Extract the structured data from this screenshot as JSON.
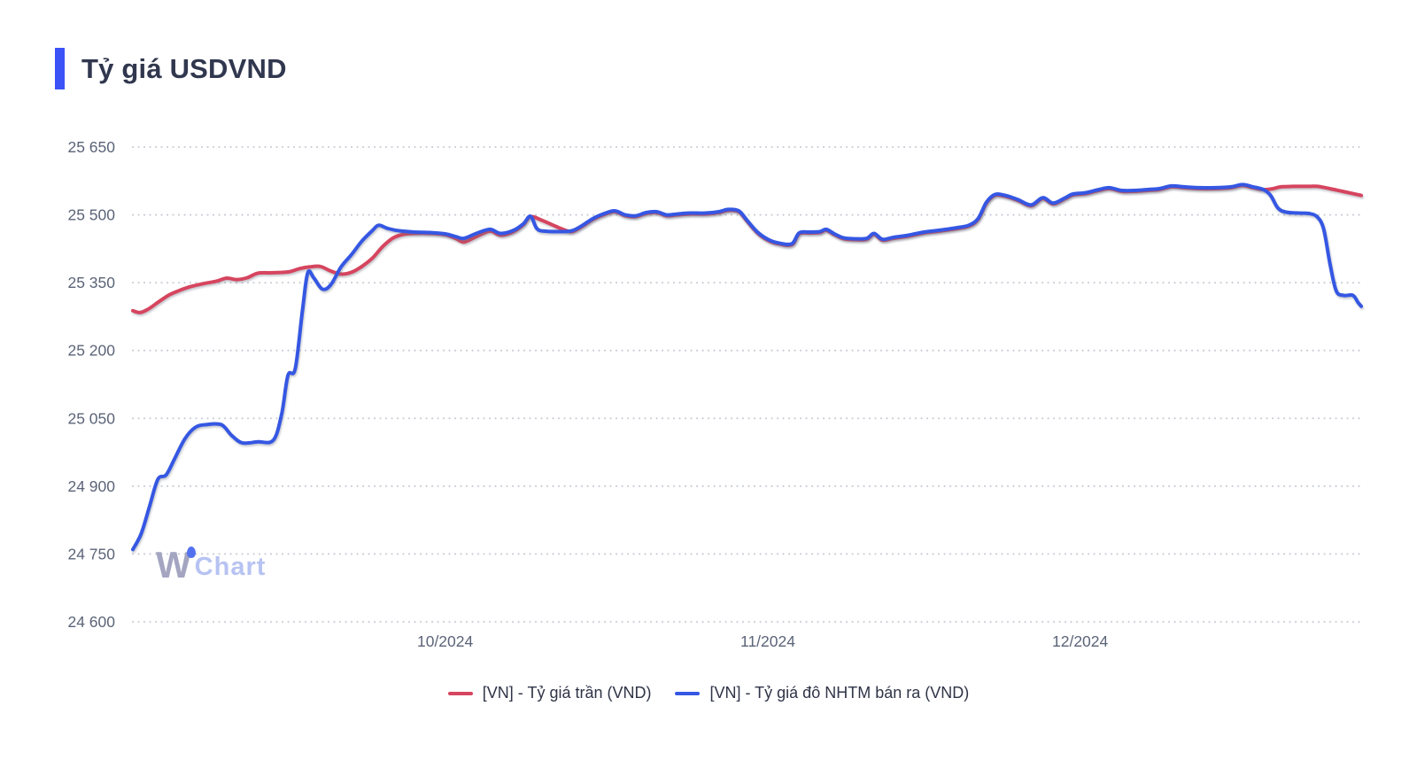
{
  "watermark": {
    "part1": "W",
    "part2": "Chart"
  },
  "colors": {
    "accent_bar": "#3b52f6",
    "title_text": "#30374e",
    "axis_text": "#5b6478",
    "grid": "#c8ccd5",
    "red_line": "#d6455f",
    "blue_line": "#3557e3",
    "legend_text": "#2f3447",
    "watermark_w": "#a3a5c1",
    "watermark_chart": "#b7c3f2",
    "watermark_dot": "#5372ee"
  },
  "chart_data": {
    "type": "line",
    "title": "Tỷ giá USDVND",
    "x_unit": "days since 2024-09-01",
    "x_domain_days": [
      0,
      118
    ],
    "x_ticks": [
      {
        "day": 30,
        "label": "10/2024"
      },
      {
        "day": 61,
        "label": "11/2024"
      },
      {
        "day": 91,
        "label": "12/2024"
      }
    ],
    "ylim": [
      24600,
      25650
    ],
    "y_ticks": [
      {
        "value": 25650,
        "label": "25 650"
      },
      {
        "value": 25500,
        "label": "25 500"
      },
      {
        "value": 25350,
        "label": "25 350"
      },
      {
        "value": 25200,
        "label": "25 200"
      },
      {
        "value": 25050,
        "label": "25 050"
      },
      {
        "value": 24900,
        "label": "24 900"
      },
      {
        "value": 24750,
        "label": "24 750"
      },
      {
        "value": 24600,
        "label": "24 600"
      }
    ],
    "grid": "dotted horizontal only",
    "legend_position": "bottom center",
    "series": [
      {
        "name": "[VN] - Tỷ giá trần (VND)",
        "color": "#d6455f",
        "data_name": "series-line-ty-gia-tran",
        "points": [
          [
            0,
            25288
          ],
          [
            0.7,
            25284
          ],
          [
            1.5,
            25292
          ],
          [
            2.5,
            25308
          ],
          [
            3.5,
            25323
          ],
          [
            4.5,
            25333
          ],
          [
            5.5,
            25341
          ],
          [
            7,
            25349
          ],
          [
            8,
            25353
          ],
          [
            9,
            25360
          ],
          [
            10,
            25357
          ],
          [
            11,
            25361
          ],
          [
            12,
            25371
          ],
          [
            13.5,
            25372
          ],
          [
            15,
            25374
          ],
          [
            16,
            25381
          ],
          [
            17,
            25385
          ],
          [
            18,
            25386
          ],
          [
            19,
            25376
          ],
          [
            20,
            25369
          ],
          [
            21,
            25373
          ],
          [
            22,
            25386
          ],
          [
            23,
            25404
          ],
          [
            24,
            25430
          ],
          [
            25,
            25449
          ],
          [
            26,
            25457
          ],
          [
            27,
            25459
          ],
          [
            28.5,
            25459
          ],
          [
            30,
            25456
          ],
          [
            31,
            25448
          ],
          [
            31.8,
            25440
          ],
          [
            33,
            25452
          ],
          [
            34.3,
            25464
          ],
          [
            35.3,
            25455
          ],
          [
            36.5,
            25462
          ],
          [
            37.5,
            25478
          ],
          [
            38.2,
            25496
          ],
          [
            39.3,
            25488
          ],
          [
            40.3,
            25478
          ],
          [
            41.3,
            25468
          ],
          [
            42.2,
            25463
          ],
          [
            43.2,
            25475
          ],
          [
            44.2,
            25490
          ],
          [
            45.3,
            25501
          ],
          [
            46.3,
            25507
          ],
          [
            47.3,
            25498
          ],
          [
            48.3,
            25496
          ],
          [
            49.3,
            25503
          ],
          [
            50.3,
            25505
          ],
          [
            51.3,
            25498
          ],
          [
            52.3,
            25500
          ],
          [
            53.5,
            25502
          ],
          [
            55,
            25502
          ],
          [
            56.3,
            25505
          ],
          [
            57.2,
            25510
          ],
          [
            58.2,
            25507
          ],
          [
            59,
            25486
          ],
          [
            60,
            25460
          ],
          [
            61,
            25444
          ],
          [
            62,
            25436
          ],
          [
            63.3,
            25434
          ],
          [
            64,
            25458
          ],
          [
            65,
            25460
          ],
          [
            66,
            25461
          ],
          [
            66.6,
            25466
          ],
          [
            67.4,
            25456
          ],
          [
            68.3,
            25447
          ],
          [
            69.5,
            25445
          ],
          [
            70.5,
            25446
          ],
          [
            71.2,
            25457
          ],
          [
            72,
            25444
          ],
          [
            73,
            25448
          ],
          [
            74.5,
            25453
          ],
          [
            76,
            25460
          ],
          [
            77.5,
            25464
          ],
          [
            79,
            25469
          ],
          [
            80.3,
            25475
          ],
          [
            81.2,
            25490
          ],
          [
            82,
            25526
          ],
          [
            82.8,
            25543
          ],
          [
            83.8,
            25541
          ],
          [
            85,
            25532
          ],
          [
            86.3,
            25520
          ],
          [
            87.4,
            25536
          ],
          [
            88.4,
            25524
          ],
          [
            89.5,
            25535
          ],
          [
            90.3,
            25544
          ],
          [
            91.5,
            25547
          ],
          [
            92.8,
            25554
          ],
          [
            93.8,
            25558
          ],
          [
            95,
            25552
          ],
          [
            96.3,
            25552
          ],
          [
            97.5,
            25554
          ],
          [
            98.6,
            25556
          ],
          [
            99.8,
            25562
          ],
          [
            101,
            25560
          ],
          [
            102.5,
            25558
          ],
          [
            104,
            25558
          ],
          [
            105.5,
            25560
          ],
          [
            106.6,
            25565
          ],
          [
            107.6,
            25560
          ],
          [
            108.6,
            25556
          ],
          [
            109.5,
            25558
          ],
          [
            110.3,
            25562
          ],
          [
            111.5,
            25563
          ],
          [
            113,
            25563
          ],
          [
            113.8,
            25563
          ],
          [
            115,
            25558
          ],
          [
            116.2,
            25552
          ],
          [
            117.2,
            25547
          ],
          [
            118,
            25543
          ]
        ]
      },
      {
        "name": "[VN] - Tỷ giá đô NHTM bán ra (VND)",
        "color": "#3557e3",
        "data_name": "series-line-ty-gia-do-nhtm-ban-ra",
        "points": [
          [
            0,
            24760
          ],
          [
            0.8,
            24795
          ],
          [
            1.6,
            24855
          ],
          [
            2.4,
            24915
          ],
          [
            3.2,
            24925
          ],
          [
            4,
            24960
          ],
          [
            5,
            25005
          ],
          [
            6,
            25030
          ],
          [
            7,
            25036
          ],
          [
            8.5,
            25036
          ],
          [
            9.5,
            25012
          ],
          [
            10.5,
            24996
          ],
          [
            12,
            24998
          ],
          [
            13.5,
            25002
          ],
          [
            14.3,
            25060
          ],
          [
            14.9,
            25145
          ],
          [
            15.6,
            25160
          ],
          [
            16.3,
            25290
          ],
          [
            16.8,
            25372
          ],
          [
            17.4,
            25360
          ],
          [
            18.2,
            25336
          ],
          [
            19,
            25345
          ],
          [
            20,
            25385
          ],
          [
            21,
            25412
          ],
          [
            22,
            25442
          ],
          [
            23,
            25465
          ],
          [
            23.6,
            25477
          ],
          [
            24.5,
            25470
          ],
          [
            25.5,
            25465
          ],
          [
            27,
            25462
          ],
          [
            28.5,
            25461
          ],
          [
            30,
            25458
          ],
          [
            31,
            25452
          ],
          [
            31.8,
            25448
          ],
          [
            33,
            25459
          ],
          [
            34.3,
            25468
          ],
          [
            35.3,
            25459
          ],
          [
            36.5,
            25465
          ],
          [
            37.5,
            25480
          ],
          [
            38.2,
            25497
          ],
          [
            38.8,
            25470
          ],
          [
            39.5,
            25464
          ],
          [
            41,
            25463
          ],
          [
            42.2,
            25465
          ],
          [
            43.2,
            25477
          ],
          [
            44.2,
            25492
          ],
          [
            45.3,
            25503
          ],
          [
            46.3,
            25509
          ],
          [
            47.3,
            25500
          ],
          [
            48.3,
            25498
          ],
          [
            49.3,
            25505
          ],
          [
            50.3,
            25507
          ],
          [
            51.3,
            25500
          ],
          [
            52.3,
            25502
          ],
          [
            53.5,
            25504
          ],
          [
            55,
            25504
          ],
          [
            56.3,
            25507
          ],
          [
            57.2,
            25512
          ],
          [
            58.2,
            25509
          ],
          [
            59,
            25488
          ],
          [
            60,
            25462
          ],
          [
            61,
            25446
          ],
          [
            62,
            25438
          ],
          [
            63.3,
            25436
          ],
          [
            64,
            25460
          ],
          [
            65,
            25462
          ],
          [
            66,
            25463
          ],
          [
            66.6,
            25468
          ],
          [
            67.4,
            25458
          ],
          [
            68.3,
            25449
          ],
          [
            69.5,
            25447
          ],
          [
            70.5,
            25448
          ],
          [
            71.2,
            25459
          ],
          [
            72,
            25446
          ],
          [
            73,
            25450
          ],
          [
            74.5,
            25455
          ],
          [
            76,
            25462
          ],
          [
            77.5,
            25466
          ],
          [
            79,
            25471
          ],
          [
            80.3,
            25477
          ],
          [
            81.2,
            25492
          ],
          [
            82,
            25528
          ],
          [
            82.8,
            25545
          ],
          [
            83.8,
            25543
          ],
          [
            85,
            25534
          ],
          [
            86.3,
            25522
          ],
          [
            87.4,
            25538
          ],
          [
            88.4,
            25526
          ],
          [
            89.5,
            25537
          ],
          [
            90.3,
            25546
          ],
          [
            91.5,
            25549
          ],
          [
            92.8,
            25556
          ],
          [
            93.8,
            25560
          ],
          [
            95,
            25554
          ],
          [
            96.3,
            25554
          ],
          [
            97.5,
            25556
          ],
          [
            98.6,
            25558
          ],
          [
            99.8,
            25564
          ],
          [
            101,
            25562
          ],
          [
            102.5,
            25560
          ],
          [
            104,
            25560
          ],
          [
            105.5,
            25562
          ],
          [
            106.6,
            25567
          ],
          [
            107.6,
            25562
          ],
          [
            108.6,
            25556
          ],
          [
            109.3,
            25543
          ],
          [
            110,
            25515
          ],
          [
            110.8,
            25506
          ],
          [
            112,
            25504
          ],
          [
            113,
            25503
          ],
          [
            113.8,
            25495
          ],
          [
            114.4,
            25468
          ],
          [
            115,
            25392
          ],
          [
            115.6,
            25332
          ],
          [
            116.3,
            25322
          ],
          [
            117.2,
            25322
          ],
          [
            117.7,
            25306
          ],
          [
            118,
            25298
          ]
        ]
      }
    ]
  }
}
